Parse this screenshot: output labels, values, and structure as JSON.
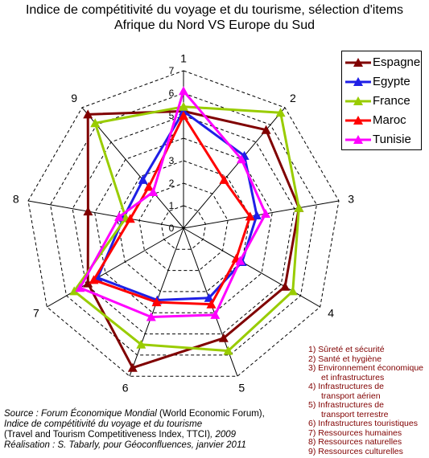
{
  "chart_data": {
    "type": "radar",
    "title_line1": "Indice de compétitivité du voyage et du tourisme, sélection d'items",
    "title_line2": "Afrique du Nord VS Europe du Sud",
    "axes": [
      "1",
      "2",
      "3",
      "4",
      "5",
      "6",
      "7",
      "8",
      "9"
    ],
    "scale_ticks": [
      "0",
      "1",
      "2",
      "3",
      "4",
      "5",
      "6",
      "7"
    ],
    "rmax": 7,
    "series": [
      {
        "name": "Espagne",
        "color": "#800000",
        "values": [
          5.2,
          5.7,
          5.2,
          5.2,
          5.2,
          6.6,
          4.9,
          4.3,
          6.6
        ]
      },
      {
        "name": "Egypte",
        "color": "#1f1fe6",
        "values": [
          5.2,
          4.2,
          3.3,
          3.0,
          3.3,
          3.4,
          4.4,
          2.7,
          2.8
        ]
      },
      {
        "name": "France",
        "color": "#99cc00",
        "values": [
          5.4,
          6.7,
          5.2,
          5.6,
          5.8,
          5.5,
          5.6,
          2.6,
          6.1
        ]
      },
      {
        "name": "Maroc",
        "color": "#ff0000",
        "values": [
          5.0,
          2.8,
          3.0,
          2.7,
          3.6,
          3.5,
          4.6,
          2.4,
          2.4
        ]
      },
      {
        "name": "Tunisie",
        "color": "#ff00ff",
        "values": [
          6.1,
          4.0,
          3.7,
          2.9,
          4.1,
          4.2,
          5.3,
          2.9,
          2.1
        ]
      }
    ]
  },
  "axis_notes": [
    "1) Sûreté et sécurité",
    "2) Santé et hygiène",
    "3) Environnement économique",
    "et infrastructures",
    "4) Infrastructures de",
    "transport aérien",
    "5) Infrastructures de",
    "transport terrestre",
    "6) Infrastructures touristiques",
    "7) Ressources humaines",
    "8) Ressources naturelles",
    "9) Ressources culturelles"
  ],
  "source": {
    "l1_italic": "Source : Forum Économique Mondial",
    "l1_normal": " (World Economic Forum),",
    "l2": "Indice de compétitivité du voyage et du tourisme",
    "l3_normal": "(Travel and Tourism Competitiveness Index, TTCI)",
    "l3_italic": ", 2009",
    "l4": "Réalisation : S. Tabarly, pour Géoconfluences, janvier 2011"
  }
}
